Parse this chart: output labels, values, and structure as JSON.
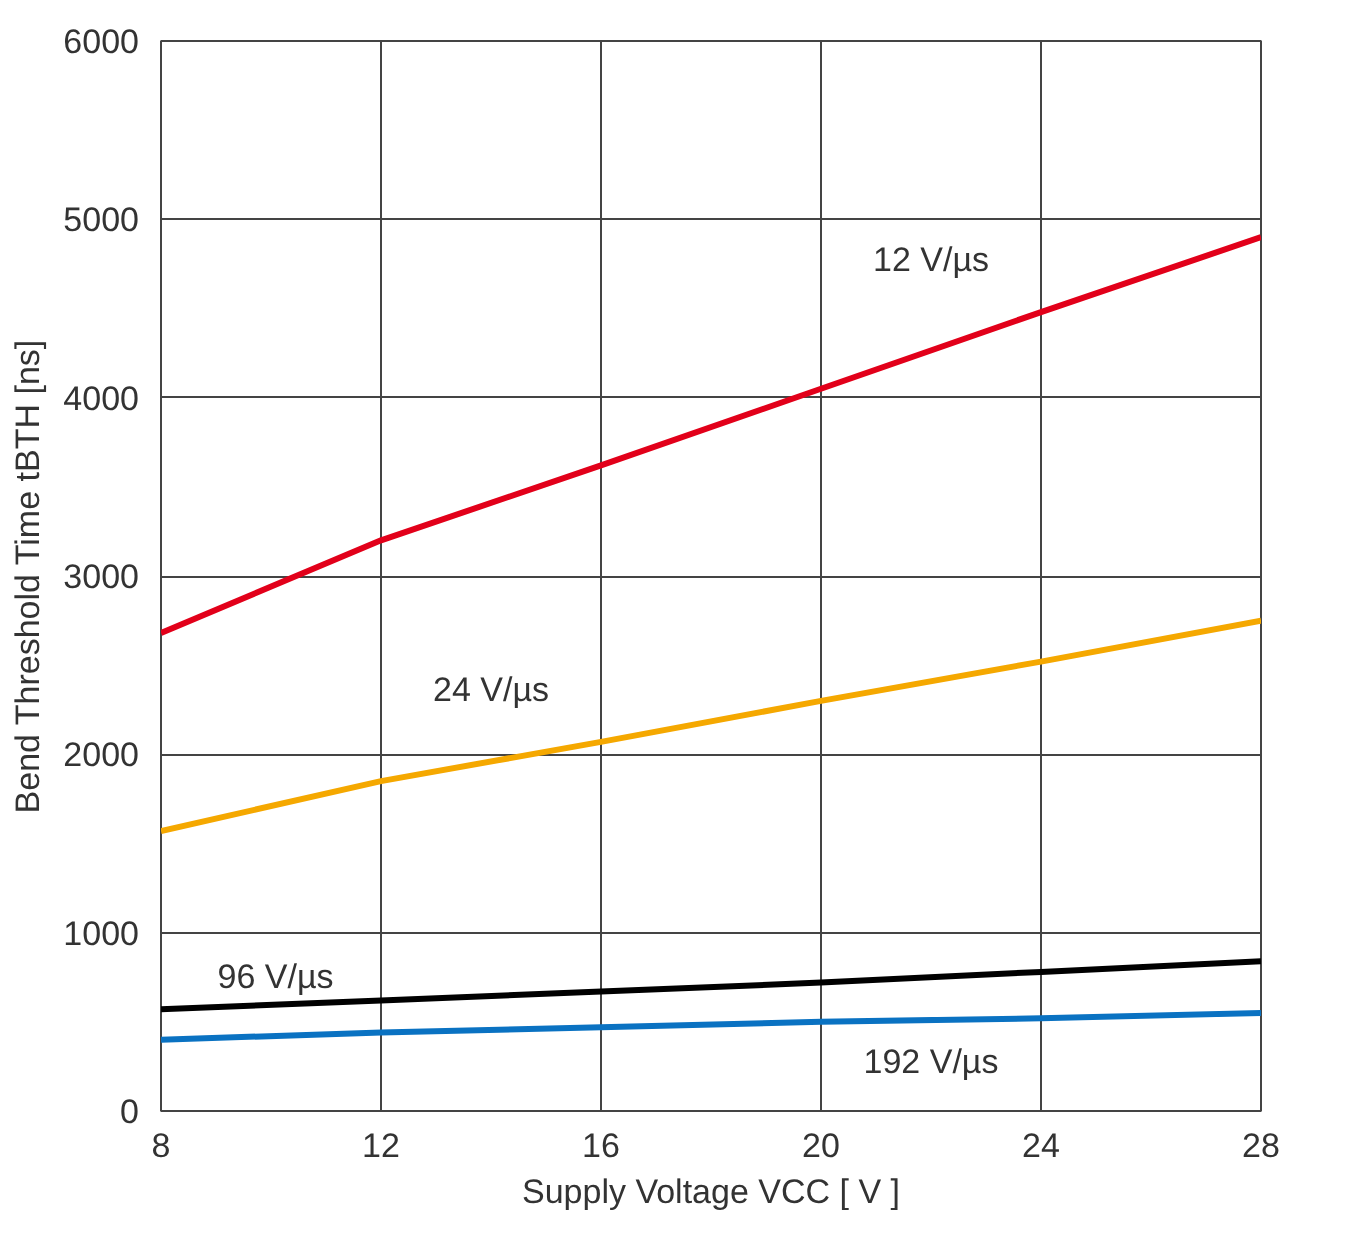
{
  "chart_data": {
    "type": "line",
    "xlabel": "Supply Voltage VCC [ V ]",
    "ylabel": "Bend Threshold Time tBTH [ns]",
    "x": [
      8,
      12,
      16,
      20,
      24,
      28
    ],
    "series": [
      {
        "name": "12 V/µs",
        "color": "#e2001a",
        "values": [
          2680,
          3200,
          3620,
          4050,
          4480,
          4900
        ]
      },
      {
        "name": "24 V/µs",
        "color": "#f5a800",
        "values": [
          1570,
          1850,
          2070,
          2300,
          2520,
          2750
        ]
      },
      {
        "name": "96 V/µs",
        "color": "#000000",
        "values": [
          570,
          620,
          670,
          720,
          780,
          840
        ]
      },
      {
        "name": "192 V/µs",
        "color": "#0a72c2",
        "values": [
          400,
          440,
          470,
          500,
          520,
          550
        ]
      }
    ],
    "xlim": [
      8,
      28
    ],
    "ylim": [
      0,
      6000
    ],
    "xticks": [
      8,
      12,
      16,
      20,
      24,
      28
    ],
    "yticks": [
      0,
      1000,
      2000,
      3000,
      4000,
      5000,
      6000
    ],
    "grid": true,
    "legend": false,
    "marker": "none",
    "line_style": "solid"
  }
}
